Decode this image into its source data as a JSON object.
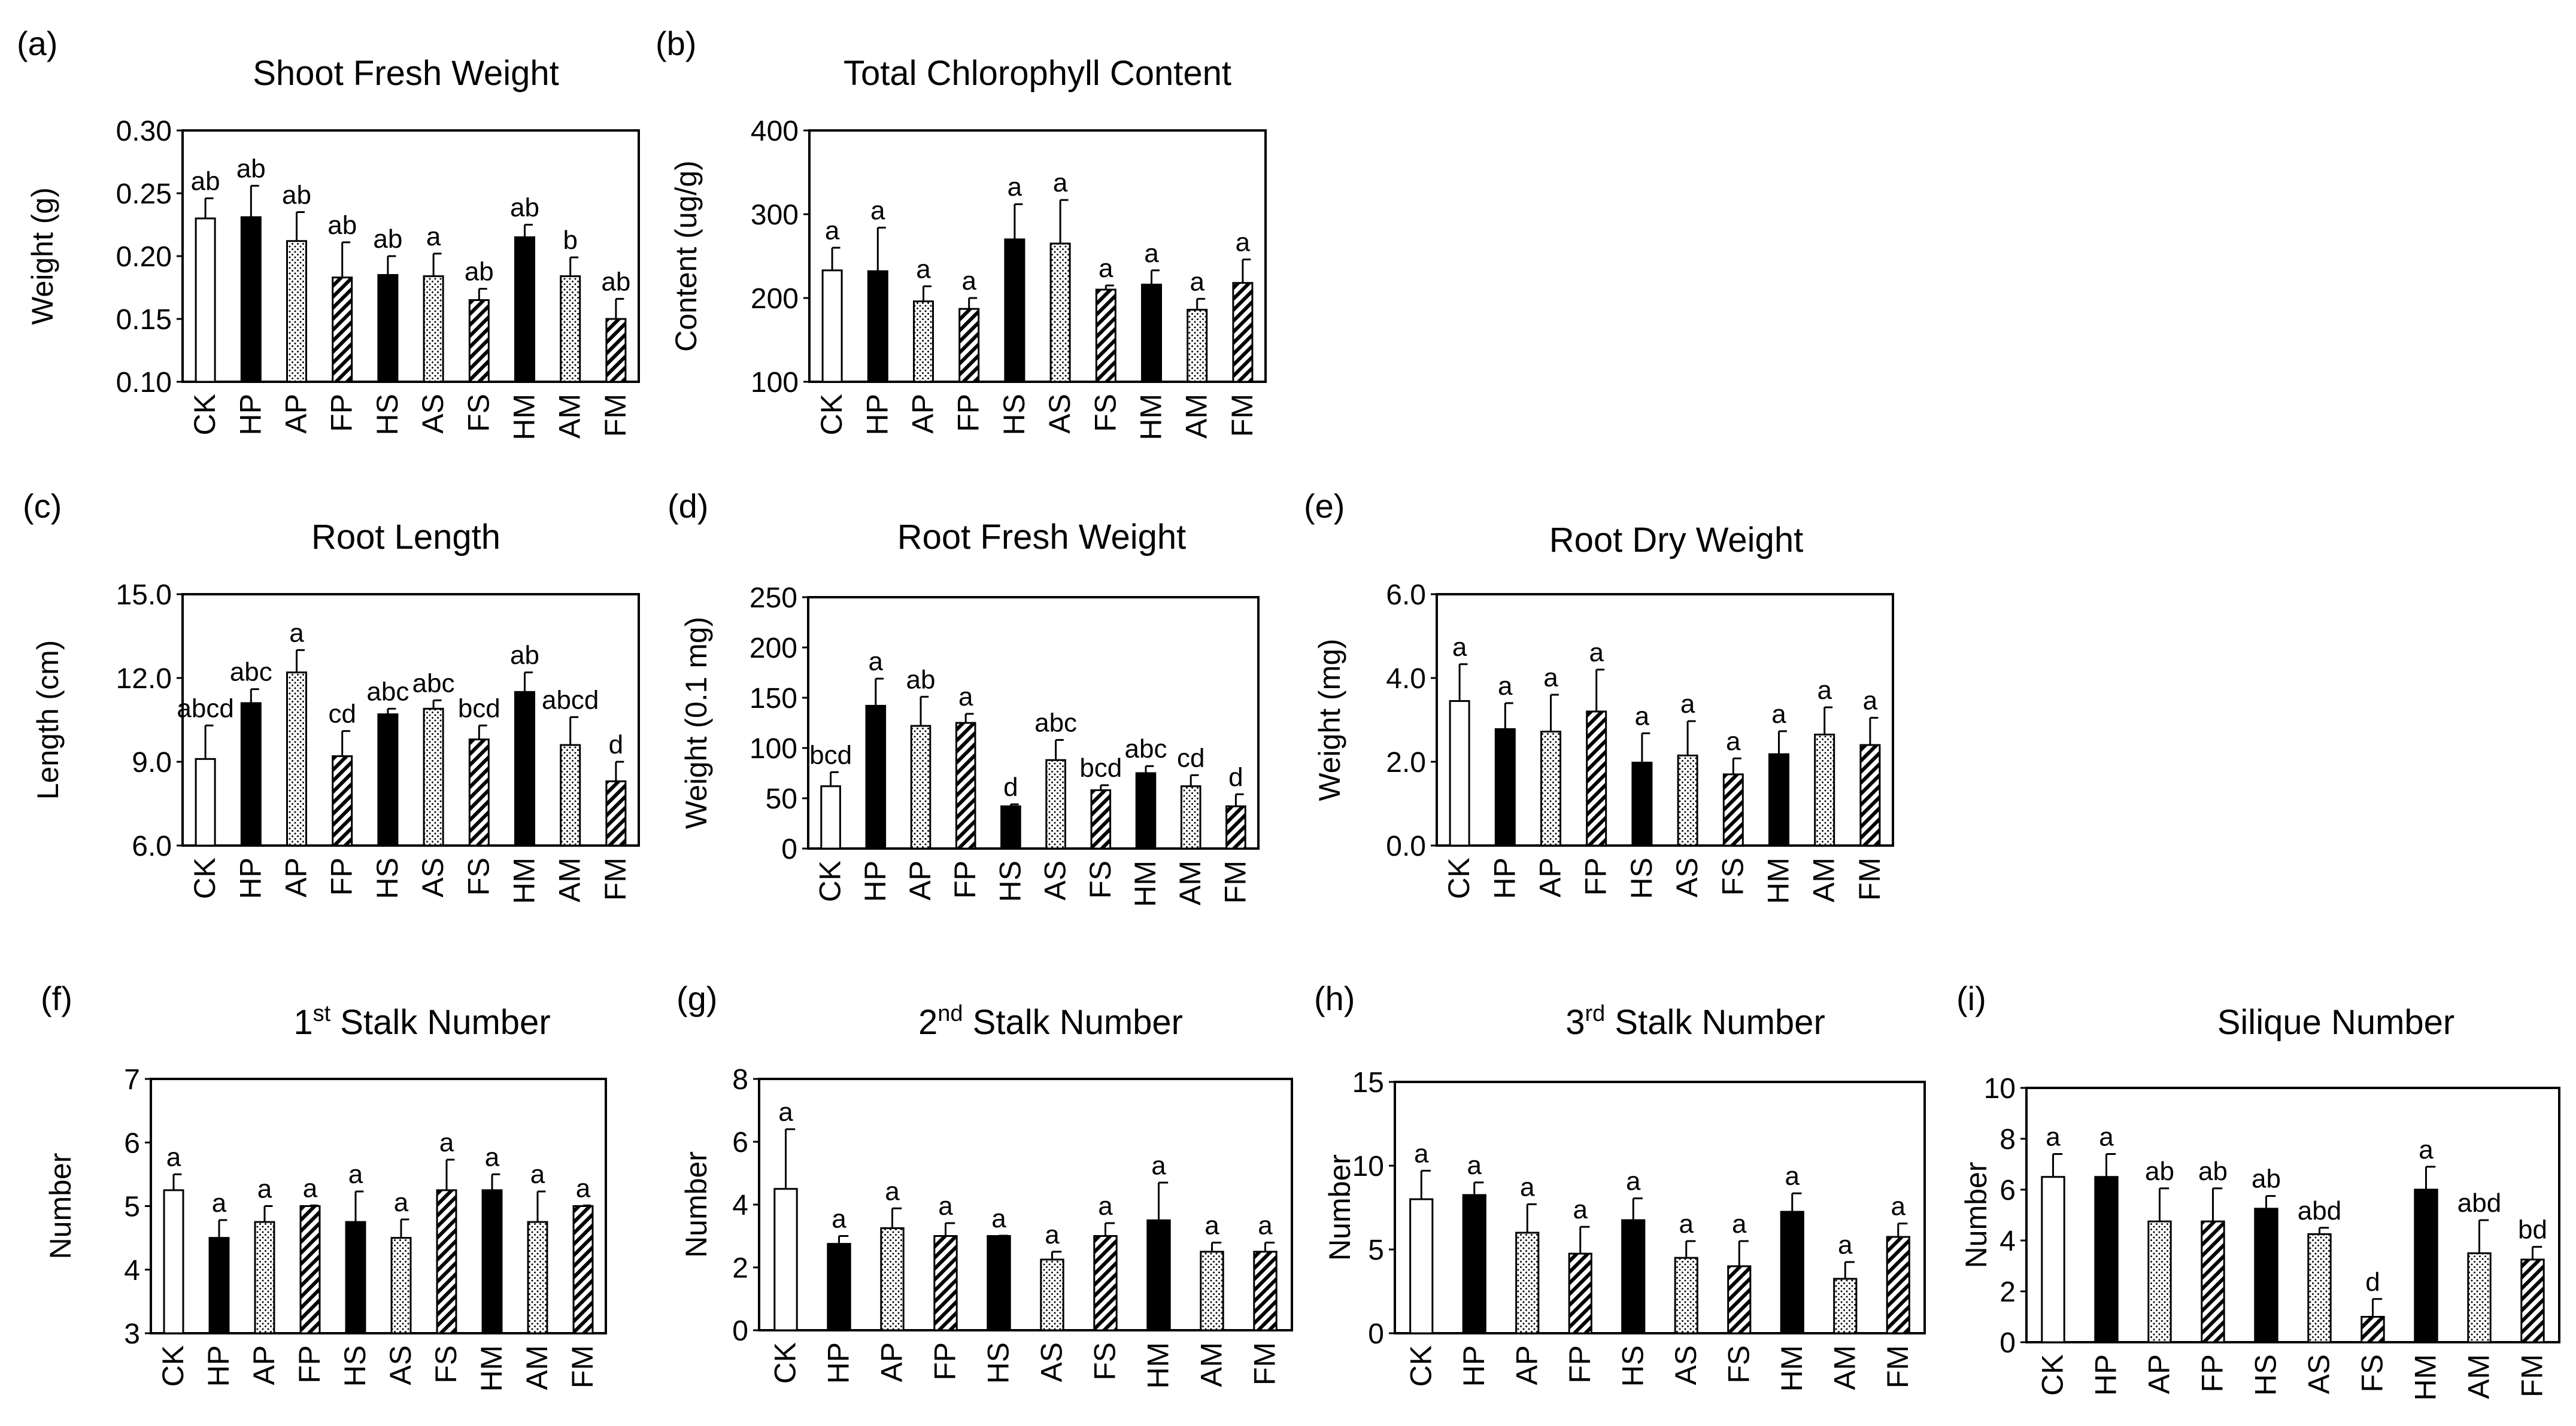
{
  "figure": {
    "background": "#ffffff",
    "ink": "#000000"
  },
  "patterns": {
    "CK": "white",
    "HP": "black",
    "AP": "dots",
    "FP": "hatch",
    "HS": "black",
    "AS": "dots",
    "FS": "hatch",
    "HM": "black",
    "AM": "dots",
    "FM": "hatch"
  },
  "chart_data": [
    {
      "id": "a",
      "panel_label": "(a)",
      "type": "bar",
      "title": "Shoot Fresh Weight",
      "title_sup": "",
      "title_rest": "",
      "xlabel": "",
      "ylabel": "Weight (g)",
      "ylim": [
        0.1,
        0.3
      ],
      "yticks": [
        "0.10",
        "0.15",
        "0.20",
        "0.25",
        "0.30"
      ],
      "categories": [
        "CK",
        "HP",
        "AP",
        "FP",
        "HS",
        "AS",
        "FS",
        "HM",
        "AM",
        "FM"
      ],
      "values": [
        0.23,
        0.231,
        0.212,
        0.183,
        0.185,
        0.184,
        0.165,
        0.215,
        0.184,
        0.15
      ],
      "errors": [
        0.016,
        0.025,
        0.023,
        0.028,
        0.015,
        0.018,
        0.009,
        0.01,
        0.015,
        0.016
      ],
      "letters": [
        "ab",
        "ab",
        "ab",
        "ab",
        "ab",
        "a",
        "ab",
        "ab",
        "b",
        "ab"
      ]
    },
    {
      "id": "b",
      "panel_label": "(b)",
      "type": "bar",
      "title": "Total Chlorophyll Content",
      "title_sup": "",
      "title_rest": "",
      "xlabel": "",
      "ylabel": "Content (ug/g)",
      "ylim": [
        100,
        400
      ],
      "yticks": [
        "100",
        "200",
        "300",
        "400"
      ],
      "categories": [
        "CK",
        "HP",
        "AP",
        "FP",
        "HS",
        "AS",
        "FS",
        "HM",
        "AM",
        "FM"
      ],
      "values": [
        233,
        232,
        196,
        187,
        270,
        265,
        210,
        216,
        186,
        218
      ],
      "errors": [
        27,
        52,
        18,
        13,
        42,
        52,
        5,
        17,
        13,
        28
      ],
      "letters": [
        "a",
        "a",
        "a",
        "a",
        "a",
        "a",
        "a",
        "a",
        "a",
        "a"
      ]
    },
    {
      "id": "c",
      "panel_label": "(c)",
      "type": "bar",
      "title": "Root Length",
      "title_sup": "",
      "title_rest": "",
      "xlabel": "",
      "ylabel": "Length (cm)",
      "ylim": [
        6.0,
        15.0
      ],
      "yticks": [
        "6.0",
        "9.0",
        "12.0",
        "15.0"
      ],
      "categories": [
        "CK",
        "HP",
        "AP",
        "FP",
        "HS",
        "AS",
        "FS",
        "HM",
        "AM",
        "FM"
      ],
      "values": [
        9.1,
        11.1,
        12.2,
        9.2,
        10.7,
        10.9,
        9.8,
        11.5,
        9.6,
        8.3
      ],
      "errors": [
        1.2,
        0.5,
        0.8,
        0.9,
        0.2,
        0.3,
        0.5,
        0.7,
        1.0,
        0.7
      ],
      "letters": [
        "abcd",
        "abc",
        "a",
        "cd",
        "abc",
        "abc",
        "bcd",
        "ab",
        "abcd",
        "d"
      ]
    },
    {
      "id": "d",
      "panel_label": "(d)",
      "type": "bar",
      "title": "Root Fresh Weight",
      "title_sup": "",
      "title_rest": "",
      "xlabel": "",
      "ylabel": "Weight (0.1 mg)",
      "ylim": [
        0,
        250
      ],
      "yticks": [
        "0",
        "50",
        "100",
        "150",
        "200",
        "250"
      ],
      "categories": [
        "CK",
        "HP",
        "AP",
        "FP",
        "HS",
        "AS",
        "FS",
        "HM",
        "AM",
        "FM"
      ],
      "values": [
        62,
        142,
        122,
        125,
        42,
        88,
        58,
        75,
        62,
        42
      ],
      "errors": [
        14,
        27,
        29,
        9,
        2,
        20,
        5,
        7,
        11,
        12
      ],
      "letters": [
        "bcd",
        "a",
        "ab",
        "a",
        "d",
        "abc",
        "bcd",
        "abc",
        "cd",
        "d"
      ]
    },
    {
      "id": "e",
      "panel_label": "(e)",
      "type": "bar",
      "title": "Root Dry Weight",
      "title_sup": "",
      "title_rest": "",
      "xlabel": "",
      "ylabel": "Weight (mg)",
      "ylim": [
        0.0,
        6.0
      ],
      "yticks": [
        "0.0",
        "2.0",
        "4.0",
        "6.0"
      ],
      "categories": [
        "CK",
        "HP",
        "AP",
        "FP",
        "HS",
        "AS",
        "FS",
        "HM",
        "AM",
        "FM"
      ],
      "values": [
        3.45,
        2.78,
        2.72,
        3.2,
        1.98,
        2.15,
        1.7,
        2.18,
        2.65,
        2.4
      ],
      "errors": [
        0.88,
        0.62,
        0.88,
        1.0,
        0.7,
        0.82,
        0.38,
        0.55,
        0.65,
        0.65
      ],
      "letters": [
        "a",
        "a",
        "a",
        "a",
        "a",
        "a",
        "a",
        "a",
        "a",
        "a"
      ]
    },
    {
      "id": "f",
      "panel_label": "(f)",
      "type": "bar",
      "title": "1",
      "title_sup": "st",
      "title_rest": " Stalk Number",
      "xlabel": "",
      "ylabel": "Number",
      "ylim": [
        3,
        7
      ],
      "yticks": [
        "3",
        "4",
        "5",
        "6",
        "7"
      ],
      "categories": [
        "CK",
        "HP",
        "AP",
        "FP",
        "HS",
        "AS",
        "FS",
        "HM",
        "AM",
        "FM"
      ],
      "values": [
        5.25,
        4.5,
        4.75,
        5.0,
        4.75,
        4.5,
        5.25,
        5.25,
        4.75,
        5.0
      ],
      "errors": [
        0.25,
        0.28,
        0.25,
        0.01,
        0.48,
        0.29,
        0.48,
        0.25,
        0.48,
        0.01
      ],
      "letters": [
        "a",
        "a",
        "a",
        "a",
        "a",
        "a",
        "a",
        "a",
        "a",
        "a"
      ]
    },
    {
      "id": "g",
      "panel_label": "(g)",
      "type": "bar",
      "title": "2",
      "title_sup": "nd",
      "title_rest": " Stalk Number",
      "xlabel": "",
      "ylabel": "Number",
      "ylim": [
        0,
        8
      ],
      "yticks": [
        "0",
        "2",
        "4",
        "6",
        "8"
      ],
      "categories": [
        "CK",
        "HP",
        "AP",
        "FP",
        "HS",
        "AS",
        "FS",
        "HM",
        "AM",
        "FM"
      ],
      "values": [
        4.5,
        2.75,
        3.25,
        3.0,
        3.0,
        2.25,
        3.0,
        3.5,
        2.5,
        2.5
      ],
      "errors": [
        1.9,
        0.25,
        0.63,
        0.41,
        0.01,
        0.25,
        0.41,
        1.2,
        0.29,
        0.29
      ],
      "letters": [
        "a",
        "a",
        "a",
        "a",
        "a",
        "a",
        "a",
        "a",
        "a",
        "a"
      ]
    },
    {
      "id": "h",
      "panel_label": "(h)",
      "type": "bar",
      "title": "3",
      "title_sup": "rd",
      "title_rest": " Stalk Number",
      "xlabel": "",
      "ylabel": "Number",
      "ylim": [
        0,
        15
      ],
      "yticks": [
        "0",
        "5",
        "10",
        "15"
      ],
      "categories": [
        "CK",
        "HP",
        "AP",
        "FP",
        "HS",
        "AS",
        "FS",
        "HM",
        "AM",
        "FM"
      ],
      "values": [
        8.0,
        8.25,
        6.0,
        4.75,
        6.75,
        4.5,
        4.0,
        7.25,
        3.25,
        5.75
      ],
      "errors": [
        1.7,
        0.75,
        1.7,
        1.6,
        1.3,
        1.0,
        1.5,
        1.1,
        1.0,
        0.8
      ],
      "letters": [
        "a",
        "a",
        "a",
        "a",
        "a",
        "a",
        "a",
        "a",
        "a",
        "a"
      ]
    },
    {
      "id": "i",
      "panel_label": "(i)",
      "type": "bar",
      "title": "Silique Number",
      "title_sup": "",
      "title_rest": "",
      "xlabel": "",
      "ylabel": "Number",
      "ylim": [
        0,
        10
      ],
      "yticks": [
        "0",
        "2",
        "4",
        "6",
        "8",
        "10"
      ],
      "categories": [
        "CK",
        "HP",
        "AP",
        "FP",
        "HS",
        "AS",
        "FS",
        "HM",
        "AM",
        "FM"
      ],
      "values": [
        6.5,
        6.5,
        4.75,
        4.75,
        5.25,
        4.25,
        1.0,
        6.0,
        3.5,
        3.25
      ],
      "errors": [
        0.9,
        0.9,
        1.3,
        1.3,
        0.5,
        0.25,
        0.7,
        0.9,
        1.3,
        0.5
      ],
      "letters": [
        "a",
        "a",
        "ab",
        "ab",
        "ab",
        "abd",
        "d",
        "a",
        "abd",
        "bd"
      ]
    }
  ]
}
